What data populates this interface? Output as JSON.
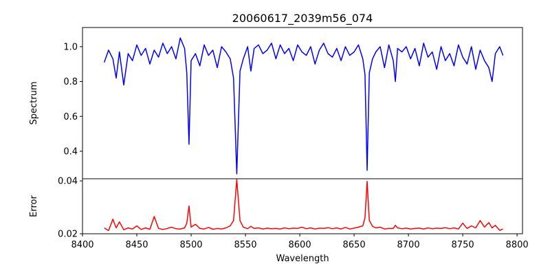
{
  "chart_data": {
    "type": "line",
    "title": "20060617_2039m56_074",
    "xlabel": "Wavelength",
    "xlim": [
      8400,
      8805
    ],
    "xticks": [
      8400,
      8450,
      8500,
      8550,
      8600,
      8650,
      8700,
      8750,
      8800
    ],
    "panels": [
      {
        "name": "spectrum",
        "ylabel": "Spectrum",
        "ylim": [
          0.242,
          1.11
        ],
        "yticks": [
          0.4,
          0.6,
          0.8,
          1.0
        ],
        "ytick_labels": [
          "0.4",
          "0.6",
          "0.8",
          "1.0"
        ],
        "color": "#0000ff",
        "x": [
          8420,
          8424,
          8428,
          8431,
          8434,
          8438,
          8442,
          8446,
          8450,
          8454,
          8458,
          8462,
          8466,
          8470,
          8474,
          8478,
          8482,
          8486,
          8490,
          8494,
          8496,
          8498,
          8500,
          8504,
          8508,
          8512,
          8516,
          8520,
          8524,
          8528,
          8532,
          8536,
          8539,
          8542,
          8545,
          8548,
          8552,
          8555,
          8558,
          8562,
          8566,
          8570,
          8574,
          8578,
          8582,
          8586,
          8590,
          8594,
          8598,
          8602,
          8606,
          8610,
          8614,
          8618,
          8622,
          8626,
          8630,
          8634,
          8638,
          8642,
          8646,
          8650,
          8654,
          8658,
          8660,
          8662,
          8664,
          8667,
          8670,
          8674,
          8678,
          8682,
          8686,
          8688,
          8690,
          8694,
          8698,
          8702,
          8706,
          8710,
          8714,
          8718,
          8722,
          8726,
          8730,
          8734,
          8738,
          8742,
          8746,
          8750,
          8754,
          8758,
          8762,
          8766,
          8770,
          8774,
          8777,
          8780,
          8784,
          8787
        ],
        "y": [
          0.91,
          0.98,
          0.93,
          0.82,
          0.97,
          0.78,
          0.96,
          0.92,
          1.01,
          0.95,
          0.99,
          0.9,
          0.98,
          0.94,
          1.02,
          0.96,
          1.0,
          0.93,
          1.05,
          0.99,
          0.85,
          0.44,
          0.92,
          0.96,
          0.89,
          1.01,
          0.95,
          0.98,
          0.88,
          1.0,
          0.97,
          0.93,
          0.82,
          0.27,
          0.86,
          0.93,
          1.0,
          0.86,
          0.99,
          1.01,
          0.96,
          0.98,
          1.02,
          0.93,
          1.01,
          0.96,
          0.99,
          0.92,
          1.01,
          0.97,
          0.95,
          1.0,
          0.9,
          0.98,
          1.02,
          0.96,
          0.94,
          0.99,
          0.92,
          1.0,
          0.95,
          0.97,
          1.01,
          0.93,
          0.84,
          0.29,
          0.85,
          0.93,
          0.97,
          1.0,
          0.88,
          1.01,
          0.92,
          0.8,
          0.99,
          0.97,
          1.0,
          0.93,
          0.99,
          0.89,
          1.02,
          0.94,
          0.97,
          0.87,
          1.0,
          0.92,
          0.96,
          0.89,
          1.01,
          0.94,
          0.9,
          1.0,
          0.87,
          0.98,
          0.92,
          0.88,
          0.8,
          0.96,
          1.0,
          0.95
        ]
      },
      {
        "name": "error",
        "ylabel": "Error",
        "ylim": [
          0.02,
          0.0408
        ],
        "yticks": [
          0.02,
          0.04
        ],
        "ytick_labels": [
          "0.02",
          "0.04"
        ],
        "color": "#ff0000",
        "x": [
          8420,
          8424,
          8428,
          8431,
          8434,
          8438,
          8442,
          8446,
          8450,
          8454,
          8458,
          8462,
          8466,
          8470,
          8474,
          8478,
          8482,
          8486,
          8490,
          8494,
          8496,
          8498,
          8500,
          8504,
          8508,
          8512,
          8516,
          8520,
          8524,
          8528,
          8532,
          8536,
          8539,
          8542,
          8545,
          8548,
          8552,
          8555,
          8558,
          8562,
          8566,
          8570,
          8574,
          8578,
          8582,
          8586,
          8590,
          8594,
          8598,
          8602,
          8606,
          8610,
          8614,
          8618,
          8622,
          8626,
          8630,
          8634,
          8638,
          8642,
          8646,
          8650,
          8654,
          8658,
          8660,
          8662,
          8664,
          8667,
          8670,
          8674,
          8678,
          8682,
          8686,
          8688,
          8690,
          8694,
          8698,
          8702,
          8706,
          8710,
          8714,
          8718,
          8722,
          8726,
          8730,
          8734,
          8738,
          8742,
          8746,
          8750,
          8754,
          8758,
          8762,
          8766,
          8770,
          8774,
          8777,
          8780,
          8784,
          8787
        ],
        "y": [
          0.0222,
          0.0212,
          0.0255,
          0.0222,
          0.0245,
          0.0215,
          0.0222,
          0.0218,
          0.023,
          0.0216,
          0.0222,
          0.0217,
          0.0265,
          0.022,
          0.0216,
          0.022,
          0.0225,
          0.0219,
          0.0218,
          0.0222,
          0.024,
          0.0305,
          0.0225,
          0.0236,
          0.022,
          0.0218,
          0.0224,
          0.0217,
          0.022,
          0.0218,
          0.0222,
          0.023,
          0.025,
          0.0405,
          0.025,
          0.0225,
          0.0219,
          0.0228,
          0.022,
          0.0222,
          0.0218,
          0.0221,
          0.0219,
          0.022,
          0.0218,
          0.0222,
          0.0219,
          0.0221,
          0.022,
          0.0225,
          0.0219,
          0.0222,
          0.0218,
          0.0221,
          0.022,
          0.0223,
          0.0219,
          0.0222,
          0.0218,
          0.0224,
          0.0218,
          0.0221,
          0.0225,
          0.023,
          0.026,
          0.0398,
          0.025,
          0.0228,
          0.0222,
          0.0225,
          0.0218,
          0.022,
          0.022,
          0.0232,
          0.0222,
          0.0219,
          0.0221,
          0.0218,
          0.022,
          0.0221,
          0.0218,
          0.0222,
          0.0219,
          0.0221,
          0.022,
          0.0223,
          0.0219,
          0.0222,
          0.0218,
          0.024,
          0.022,
          0.023,
          0.0222,
          0.025,
          0.0225,
          0.0242,
          0.0222,
          0.0232,
          0.0213,
          0.0218
        ]
      }
    ]
  }
}
